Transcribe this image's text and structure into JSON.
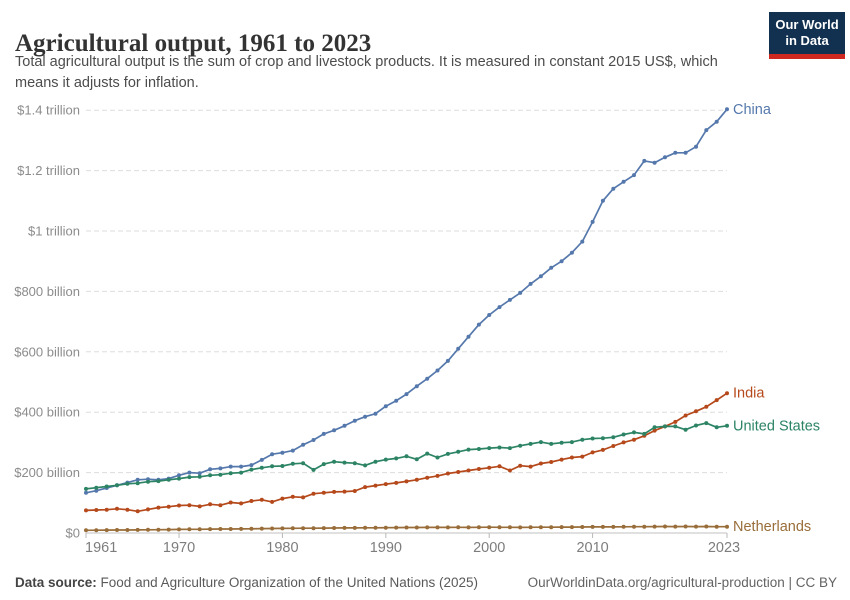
{
  "header": {
    "title": "Agricultural output, 1961 to 2023",
    "subtitle_lines": [
      "Total agricultural output is the sum of crop and livestock products. It is measured in constant 2015 US$, which",
      "means it adjusts for inflation."
    ],
    "logo": {
      "line1": "Our World",
      "line2": "in Data",
      "bg_color": "#12304F",
      "accent_color": "#CE2820",
      "text_color": "#FFFFFF"
    }
  },
  "chart_data": {
    "type": "line",
    "title": "Agricultural output, 1961 to 2023",
    "unit": "constant 2015 US$ (billions)",
    "xlim": [
      1961,
      2023
    ],
    "ylim": [
      0,
      1400
    ],
    "grid": "horizontal dashed gridlines",
    "legend_position": "labels at line ends (right side)",
    "markers": "small dots on every yearly data point",
    "x_ticks": [
      1961,
      1970,
      1980,
      1990,
      2000,
      2010,
      2023
    ],
    "y_ticks": [
      {
        "value": 0,
        "label": "$0"
      },
      {
        "value": 200,
        "label": "$200 billion"
      },
      {
        "value": 400,
        "label": "$400 billion"
      },
      {
        "value": 600,
        "label": "$600 billion"
      },
      {
        "value": 800,
        "label": "$800 billion"
      },
      {
        "value": 1000,
        "label": "$1 trillion"
      },
      {
        "value": 1200,
        "label": "$1.2 trillion"
      },
      {
        "value": 1400,
        "label": "$1.4 trillion"
      }
    ],
    "x": [
      1961,
      1962,
      1963,
      1964,
      1965,
      1966,
      1967,
      1968,
      1969,
      1970,
      1971,
      1972,
      1973,
      1974,
      1975,
      1976,
      1977,
      1978,
      1979,
      1980,
      1981,
      1982,
      1983,
      1984,
      1985,
      1986,
      1987,
      1988,
      1989,
      1990,
      1991,
      1992,
      1993,
      1994,
      1995,
      1996,
      1997,
      1998,
      1999,
      2000,
      2001,
      2002,
      2003,
      2004,
      2005,
      2006,
      2007,
      2008,
      2009,
      2010,
      2011,
      2012,
      2013,
      2014,
      2015,
      2016,
      2017,
      2018,
      2019,
      2020,
      2021,
      2022,
      2023
    ],
    "series": [
      {
        "name": "China",
        "color": "#5578AC",
        "values": [
          133,
          140,
          149,
          158,
          167,
          176,
          178,
          176,
          180,
          191,
          200,
          198,
          211,
          214,
          220,
          220,
          225,
          242,
          261,
          266,
          273,
          292,
          308,
          328,
          340,
          355,
          372,
          385,
          395,
          420,
          438,
          460,
          486,
          511,
          538,
          570,
          610,
          650,
          690,
          722,
          748,
          772,
          795,
          825,
          850,
          878,
          900,
          928,
          965,
          1030,
          1100,
          1140,
          1163,
          1185,
          1232,
          1226,
          1244,
          1259,
          1259,
          1279,
          1334,
          1362,
          1403
        ]
      },
      {
        "name": "India",
        "color": "#B5491B",
        "values": [
          75,
          76,
          77,
          80,
          77,
          72,
          78,
          84,
          87,
          91,
          92,
          88,
          95,
          92,
          101,
          98,
          106,
          110,
          103,
          114,
          120,
          118,
          130,
          133,
          136,
          137,
          139,
          152,
          157,
          162,
          166,
          171,
          176,
          183,
          189,
          197,
          202,
          207,
          212,
          216,
          221,
          207,
          223,
          220,
          230,
          235,
          243,
          250,
          253,
          267,
          275,
          288,
          300,
          309,
          322,
          339,
          353,
          368,
          389,
          403,
          418,
          440,
          463
        ]
      },
      {
        "name": "United States",
        "color": "#2C8465",
        "values": [
          146,
          150,
          154,
          158,
          163,
          165,
          170,
          172,
          176,
          180,
          185,
          186,
          191,
          193,
          198,
          200,
          210,
          216,
          221,
          222,
          229,
          231,
          209,
          228,
          236,
          233,
          231,
          224,
          236,
          243,
          247,
          254,
          244,
          263,
          250,
          262,
          269,
          276,
          278,
          281,
          283,
          281,
          289,
          295,
          301,
          295,
          299,
          301,
          309,
          313,
          314,
          317,
          326,
          333,
          328,
          350,
          353,
          353,
          342,
          356,
          364,
          350,
          355
        ]
      },
      {
        "name": "Netherlands",
        "color": "#996D39",
        "values": [
          9,
          9.2,
          9.5,
          9.8,
          10,
          10.2,
          10.6,
          11,
          11.2,
          11.8,
          12.1,
          12.4,
          12.8,
          13.2,
          13.4,
          13.6,
          14,
          14.5,
          14.8,
          15.2,
          15.4,
          15.8,
          15.9,
          16.3,
          16.4,
          16.8,
          17,
          17.1,
          17.3,
          17.7,
          17.9,
          18.3,
          18.2,
          18.4,
          18.6,
          18.6,
          18.8,
          18.7,
          19,
          19.2,
          18.9,
          18.8,
          18.7,
          19,
          19.1,
          19.2,
          19.4,
          19.7,
          19.9,
          20.2,
          20.3,
          20.2,
          20.5,
          20.9,
          21,
          21.2,
          21.4,
          21.2,
          21.4,
          21.3,
          21.4,
          20.9,
          21
        ]
      }
    ]
  },
  "footer": {
    "source_label": "Data source:",
    "source_value": "Food and Agriculture Organization of the United Nations (2025)",
    "credit": "OurWorldinData.org/agricultural-production | CC BY"
  }
}
